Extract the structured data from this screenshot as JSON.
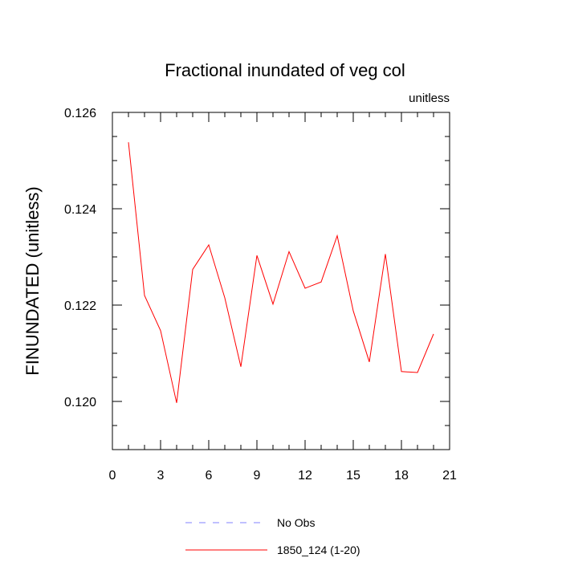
{
  "chart_data": {
    "type": "line",
    "title": "Fractional inundated of veg col",
    "units_label": "unitless",
    "ylabel": "FINUNDATED  (unitless)",
    "xlabel": "",
    "xlim": [
      0,
      21
    ],
    "ylim": [
      0.119,
      0.126
    ],
    "xticks": [
      0,
      3,
      6,
      9,
      12,
      15,
      18,
      21
    ],
    "xtick_labels": [
      "0",
      "3",
      "6",
      "9",
      "12",
      "15",
      "18",
      "21"
    ],
    "yticks": [
      0.12,
      0.122,
      0.124,
      0.126
    ],
    "ytick_labels": [
      "0.120",
      "0.122",
      "0.124",
      "0.126"
    ],
    "grid": false,
    "legend_position": "bottom",
    "series": [
      {
        "name": "1850_124 (1-20)",
        "color": "#ff0000",
        "style": "solid",
        "x": [
          1,
          2,
          3,
          4,
          5,
          6,
          7,
          8,
          9,
          10,
          11,
          12,
          13,
          14,
          15,
          16,
          17,
          18,
          19,
          20
        ],
        "y": [
          0.12538,
          0.1222,
          0.12147,
          0.11997,
          0.12274,
          0.12325,
          0.12215,
          0.12072,
          0.12303,
          0.12202,
          0.12311,
          0.12235,
          0.12248,
          0.12344,
          0.12188,
          0.12082,
          0.12306,
          0.12062,
          0.1206,
          0.1214
        ]
      }
    ],
    "legend": [
      {
        "label": "No Obs",
        "color": "#8080ff",
        "style": "dashed"
      },
      {
        "label": "1850_124 (1-20)",
        "color": "#ff0000",
        "style": "solid"
      }
    ]
  }
}
